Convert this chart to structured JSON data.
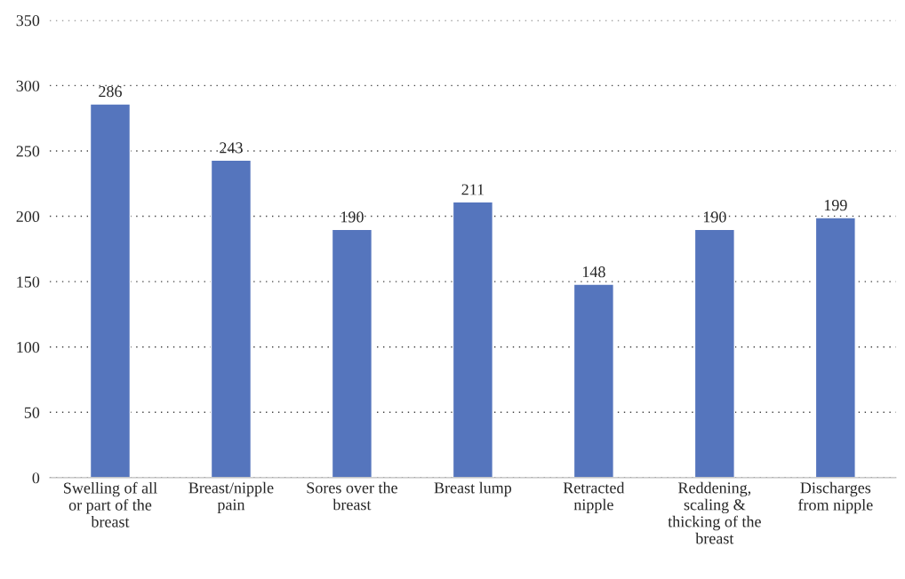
{
  "chart_data": {
    "type": "bar",
    "categories": [
      "Swelling of all\nor part of the\nbreast",
      "Breast/nipple\npain",
      "Sores over the\nbreast",
      "Breast lump",
      "Retracted\nnipple",
      "Reddening,\nscaling &\nthicking of the\nbreast",
      "Discharges\nfrom nipple"
    ],
    "values": [
      286,
      243,
      190,
      211,
      148,
      190,
      199
    ],
    "color": "#5575bd",
    "ylim": [
      0,
      350
    ],
    "yticks": [
      0,
      50,
      100,
      150,
      200,
      250,
      300,
      350
    ],
    "grid": "y",
    "data_labels": true,
    "legend": false
  }
}
